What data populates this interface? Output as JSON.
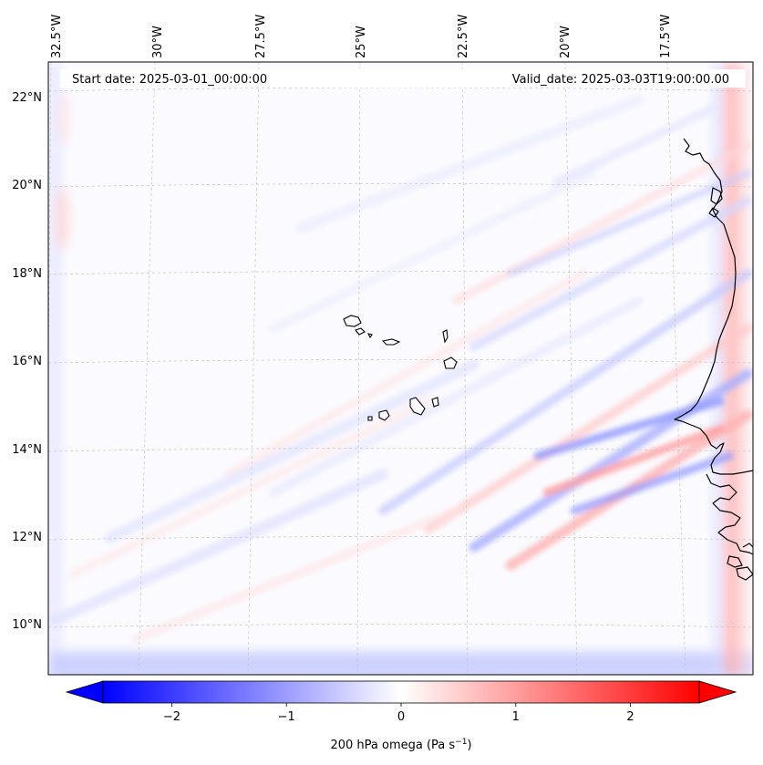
{
  "map": {
    "title_left": "Start date: 2025-03-01_00:00:00",
    "title_right": "Valid_date: 2025-03-03T19:00:00.00",
    "lon_labels": [
      "32.5°W",
      "30°W",
      "27.5°W",
      "25°W",
      "22.5°W",
      "20°W",
      "17.5°W"
    ],
    "lat_labels": [
      "22°N",
      "20°N",
      "18°N",
      "16°N",
      "14°N",
      "12°N",
      "10°N"
    ],
    "colorbar": {
      "label": "200 hPa omega (Pa s",
      "label_sup": "−1",
      "label_end": ")",
      "min": -2.6,
      "max": 2.6,
      "ticks": [
        "−2",
        "−1",
        "0",
        "1",
        "2"
      ],
      "tick_values": [
        -2,
        -1,
        0,
        1,
        2
      ],
      "colors": {
        "low": "#0000ff",
        "mid": "#ffffff",
        "high": "#ff0000"
      }
    }
  }
}
